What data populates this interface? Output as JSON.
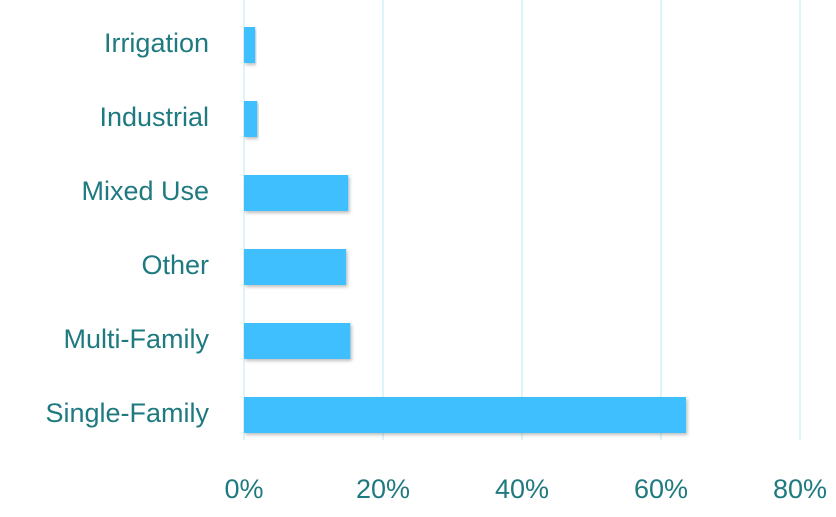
{
  "chart_data": {
    "type": "bar",
    "orientation": "horizontal",
    "categories": [
      "Irrigation",
      "Industrial",
      "Mixed Use",
      "Other",
      "Multi-Family",
      "Single-Family"
    ],
    "values": [
      1.6,
      1.9,
      15.0,
      14.7,
      15.3,
      63.6
    ],
    "color": "#40bfff",
    "xlim": [
      0,
      80
    ],
    "xticks": [
      {
        "value": 0,
        "label": "0%"
      },
      {
        "value": 20,
        "label": "20%"
      },
      {
        "value": 40,
        "label": "40%"
      },
      {
        "value": 60,
        "label": "60%"
      },
      {
        "value": 80,
        "label": "80%"
      }
    ],
    "grid": true
  }
}
